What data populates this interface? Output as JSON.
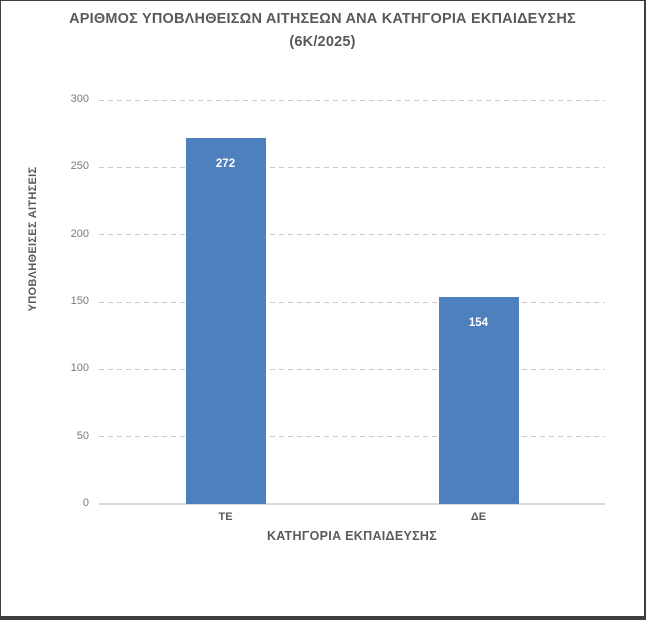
{
  "window": {
    "background": "#ffffff",
    "frame_border_color": "#3f3f3f"
  },
  "chart_data": {
    "type": "bar",
    "title_line1": "ΑΡΙΘΜΟΣ ΥΠΟΒΛΗΘΕΙΣΩΝ ΑΙΤΗΣΕΩΝ ΑΝΑ ΚΑΤΗΓΟΡΙΑ ΕΚΠΑΙΔΕΥΣΗΣ",
    "title_line2": "(6Κ/2025)",
    "categories": [
      "ΤΕ",
      "ΔΕ"
    ],
    "values": [
      272,
      154
    ],
    "data_labels": [
      "272",
      "154"
    ],
    "xlabel": "ΚΑΤΗΓΟΡΙΑ ΕΚΠΑΙΔΕΥΣΗΣ",
    "ylabel": "ΥΠΟΒΛΗΘΕΙΣΕΣ ΑΙΤΗΣΕΙΣ",
    "ylim": [
      0,
      300
    ],
    "yticks": [
      0,
      50,
      100,
      150,
      200,
      250,
      300
    ],
    "grid": "horizontal-dashed",
    "legend": "none",
    "bar_color": "#4e80be",
    "data_label_color": "#ffffff",
    "title_color": "#595959",
    "tick_label_color": "#7a7a7a",
    "category_label_color": "#595959",
    "axis_title_color": "#595959",
    "gridline_color": "#c9c9c9",
    "baseline_color": "#d9d9d9"
  }
}
